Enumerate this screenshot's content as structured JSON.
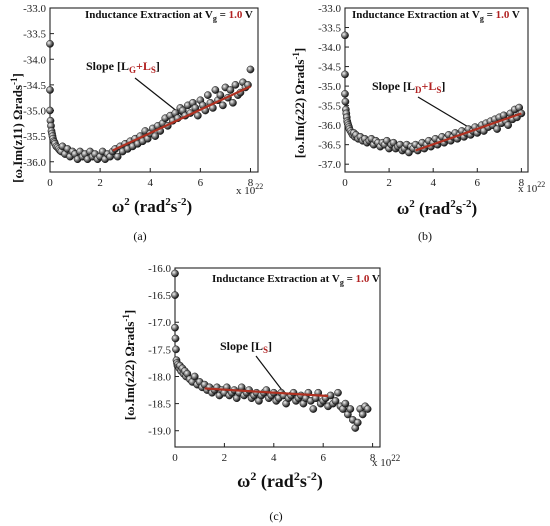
{
  "colors": {
    "fit": "#b03020",
    "accent": "#b22222",
    "marker_dark": "#1a1a1a",
    "marker_light": "#e8e8e8"
  },
  "chart_data": [
    {
      "type": "scatter",
      "caption": "(a)",
      "title_prefix": "Inductance Extraction at V",
      "title_sub": "g",
      "title_eq": " = ",
      "title_value": "1.0",
      "title_unit": " V",
      "ylabel": "[ω.Im(z11) Ωrads",
      "ylabel_sup": "-1",
      "ylabel_end": "]",
      "xlabel": "ω",
      "xlabel_sup": "2",
      "xlabel_mid": " (rad",
      "xlabel_sup2": "2",
      "xlabel_mid2": "s",
      "xlabel_sup3": "-2",
      "xlabel_end": ")",
      "x_multiplier": "x 10",
      "x_multiplier_exp": "22",
      "xlim": [
        0,
        8.3
      ],
      "ylim": [
        -36.2,
        -33.0
      ],
      "xticks": [
        "0",
        "2",
        "4",
        "6",
        "8"
      ],
      "yticks": [
        "-33.0",
        "-33.5",
        "-34.0",
        "-34.5",
        "-35.0",
        "-35.5",
        "-36.0"
      ],
      "annotation": {
        "prefix": "Slope [L",
        "sub1": "G",
        "plus": "+L",
        "sub2": "S",
        "suffix": "]"
      },
      "fit": {
        "x": [
          2.5,
          8.0
        ],
        "y": [
          -35.78,
          -34.53
        ]
      },
      "series_x": [
        0,
        0,
        0,
        0.02,
        0.04,
        0.06,
        0.08,
        0.1,
        0.12,
        0.15,
        0.18,
        0.2,
        0.25,
        0.3,
        0.35,
        0.4,
        0.45,
        0.5,
        0.6,
        0.7,
        0.8,
        0.9,
        1.0,
        1.1,
        1.2,
        1.3,
        1.4,
        1.5,
        1.6,
        1.7,
        1.8,
        1.9,
        2.0,
        2.1,
        2.2,
        2.3,
        2.4,
        2.5,
        2.6,
        2.7,
        2.8,
        2.9,
        3.0,
        3.1,
        3.2,
        3.3,
        3.4,
        3.5,
        3.6,
        3.7,
        3.8,
        3.9,
        4.0,
        4.1,
        4.2,
        4.3,
        4.4,
        4.5,
        4.6,
        4.7,
        4.8,
        4.9,
        5.0,
        5.1,
        5.2,
        5.3,
        5.4,
        5.5,
        5.6,
        5.7,
        5.8,
        5.9,
        6.0,
        6.1,
        6.2,
        6.3,
        6.4,
        6.5,
        6.6,
        6.7,
        6.8,
        6.9,
        7.0,
        7.1,
        7.2,
        7.3,
        7.4,
        7.5,
        7.6,
        7.7,
        7.8,
        7.9,
        8.0
      ],
      "series_y": [
        -33.7,
        -34.6,
        -35.0,
        -35.2,
        -35.3,
        -35.4,
        -35.45,
        -35.5,
        -35.55,
        -35.6,
        -35.62,
        -35.65,
        -35.7,
        -35.72,
        -35.75,
        -35.78,
        -35.8,
        -35.7,
        -35.85,
        -35.75,
        -35.9,
        -35.8,
        -35.85,
        -35.95,
        -35.8,
        -35.9,
        -35.85,
        -35.95,
        -35.8,
        -35.9,
        -35.85,
        -35.95,
        -35.9,
        -35.8,
        -35.95,
        -35.85,
        -35.9,
        -35.8,
        -35.75,
        -35.9,
        -35.7,
        -35.8,
        -35.65,
        -35.75,
        -35.6,
        -35.7,
        -35.55,
        -35.65,
        -35.5,
        -35.6,
        -35.4,
        -35.55,
        -35.45,
        -35.35,
        -35.5,
        -35.3,
        -35.4,
        -35.25,
        -35.15,
        -35.3,
        -35.1,
        -35.2,
        -35.05,
        -35.15,
        -34.95,
        -35.0,
        -35.1,
        -34.9,
        -35.05,
        -34.85,
        -34.95,
        -35.1,
        -34.8,
        -34.9,
        -35.0,
        -34.7,
        -34.85,
        -34.95,
        -34.6,
        -34.8,
        -34.7,
        -34.9,
        -34.55,
        -34.75,
        -34.6,
        -34.85,
        -34.5,
        -34.7,
        -34.65,
        -34.45,
        -34.55,
        -34.5,
        -34.2
      ]
    },
    {
      "type": "scatter",
      "caption": "(b)",
      "title_prefix": "Inductance Extraction at V",
      "title_sub": "g",
      "title_eq": " = ",
      "title_value": "1.0",
      "title_unit": " V",
      "ylabel": "[ω.Im(z22) Ωrads",
      "ylabel_sup": "-1",
      "ylabel_end": "]",
      "xlabel": "ω",
      "xlabel_sup": "2",
      "xlabel_mid": " (rad",
      "xlabel_sup2": "2",
      "xlabel_mid2": "s",
      "xlabel_sup3": "-2",
      "xlabel_end": ")",
      "x_multiplier": "x 10",
      "x_multiplier_exp": "22",
      "xlim": [
        0,
        8.3
      ],
      "ylim": [
        -37.2,
        -33.0
      ],
      "xticks": [
        "0",
        "2",
        "4",
        "6",
        "8"
      ],
      "yticks": [
        "-33.0",
        "-33.5",
        "-34.0",
        "-34.5",
        "-35.0",
        "-35.5",
        "-36.0",
        "-36.5",
        "-37.0"
      ],
      "annotation": {
        "prefix": "Slope [L",
        "sub1": "D",
        "plus": "+L",
        "sub2": "S",
        "suffix": "]"
      },
      "fit": {
        "x": [
          3.2,
          8.0
        ],
        "y": [
          -36.65,
          -35.7
        ]
      },
      "series_x": [
        0,
        0,
        0,
        0.02,
        0.04,
        0.06,
        0.08,
        0.1,
        0.12,
        0.15,
        0.18,
        0.2,
        0.25,
        0.3,
        0.35,
        0.4,
        0.45,
        0.5,
        0.6,
        0.7,
        0.8,
        0.9,
        1.0,
        1.1,
        1.2,
        1.3,
        1.4,
        1.5,
        1.6,
        1.7,
        1.8,
        1.9,
        2.0,
        2.1,
        2.2,
        2.3,
        2.4,
        2.5,
        2.6,
        2.7,
        2.8,
        2.9,
        3.0,
        3.1,
        3.2,
        3.3,
        3.4,
        3.5,
        3.6,
        3.7,
        3.8,
        3.9,
        4.0,
        4.1,
        4.2,
        4.3,
        4.4,
        4.5,
        4.6,
        4.7,
        4.8,
        4.9,
        5.0,
        5.1,
        5.2,
        5.3,
        5.4,
        5.5,
        5.6,
        5.7,
        5.8,
        5.9,
        6.0,
        6.1,
        6.2,
        6.3,
        6.4,
        6.5,
        6.6,
        6.7,
        6.8,
        6.9,
        7.0,
        7.1,
        7.2,
        7.3,
        7.4,
        7.5,
        7.6,
        7.7,
        7.8,
        7.9,
        8.0
      ],
      "series_y": [
        -33.7,
        -34.7,
        -35.2,
        -35.4,
        -35.6,
        -35.7,
        -35.8,
        -35.9,
        -35.95,
        -36.0,
        -36.05,
        -36.1,
        -36.15,
        -36.2,
        -36.25,
        -36.2,
        -36.3,
        -36.25,
        -36.35,
        -36.3,
        -36.4,
        -36.35,
        -36.45,
        -36.4,
        -36.35,
        -36.5,
        -36.4,
        -36.45,
        -36.55,
        -36.45,
        -36.5,
        -36.4,
        -36.6,
        -36.5,
        -36.45,
        -36.6,
        -36.55,
        -36.5,
        -36.65,
        -36.6,
        -36.5,
        -36.7,
        -36.55,
        -36.6,
        -36.5,
        -36.65,
        -36.55,
        -36.45,
        -36.6,
        -36.5,
        -36.4,
        -36.55,
        -36.45,
        -36.35,
        -36.5,
        -36.4,
        -36.3,
        -36.45,
        -36.35,
        -36.25,
        -36.4,
        -36.3,
        -36.2,
        -36.35,
        -36.25,
        -36.15,
        -36.3,
        -36.2,
        -36.1,
        -36.25,
        -36.15,
        -36.05,
        -36.2,
        -36.1,
        -36.0,
        -36.15,
        -35.95,
        -36.05,
        -35.9,
        -36.0,
        -35.85,
        -36.1,
        -35.8,
        -35.95,
        -35.75,
        -35.9,
        -36.0,
        -35.7,
        -35.85,
        -35.6,
        -35.8,
        -35.55,
        -35.7
      ]
    },
    {
      "type": "scatter",
      "caption": "(c)",
      "title_prefix": "Inductance Extraction at V",
      "title_sub": "g",
      "title_eq": " = ",
      "title_value": "1.0",
      "title_unit": " V",
      "ylabel": "[ω.Im(z22) Ωrads",
      "ylabel_sup": "-1",
      "ylabel_end": "]",
      "xlabel": "ω",
      "xlabel_sup": "2",
      "xlabel_mid": " (rad",
      "xlabel_sup2": "2",
      "xlabel_mid2": "s",
      "xlabel_sup3": "-2",
      "xlabel_end": ")",
      "x_multiplier": "x 10",
      "x_multiplier_exp": "22",
      "xlim": [
        0,
        8.3
      ],
      "ylim": [
        -19.3,
        -16.0
      ],
      "xticks": [
        "0",
        "2",
        "4",
        "6",
        "8"
      ],
      "yticks": [
        "-16.0",
        "-16.5",
        "-17.0",
        "-17.5",
        "-18.0",
        "-18.5",
        "-19.0"
      ],
      "annotation": {
        "prefix": "Slope [L",
        "sub1": "S",
        "plus": "",
        "sub2": "",
        "suffix": "]"
      },
      "fit": {
        "x": [
          1.2,
          6.2
        ],
        "y": [
          -18.22,
          -18.36
        ]
      },
      "series_x": [
        0,
        0,
        0,
        0.02,
        0.04,
        0.06,
        0.08,
        0.1,
        0.12,
        0.15,
        0.18,
        0.2,
        0.25,
        0.3,
        0.35,
        0.4,
        0.45,
        0.5,
        0.6,
        0.7,
        0.8,
        0.9,
        1.0,
        1.1,
        1.2,
        1.3,
        1.4,
        1.5,
        1.6,
        1.7,
        1.8,
        1.9,
        2.0,
        2.1,
        2.2,
        2.3,
        2.4,
        2.5,
        2.6,
        2.7,
        2.8,
        2.9,
        3.0,
        3.1,
        3.2,
        3.3,
        3.4,
        3.5,
        3.6,
        3.7,
        3.8,
        3.9,
        4.0,
        4.1,
        4.2,
        4.3,
        4.4,
        4.5,
        4.6,
        4.7,
        4.8,
        4.9,
        5.0,
        5.1,
        5.2,
        5.3,
        5.4,
        5.5,
        5.6,
        5.7,
        5.8,
        5.9,
        6.0,
        6.1,
        6.2,
        6.3,
        6.4,
        6.5,
        6.6,
        6.7,
        6.8,
        6.9,
        7.0,
        7.1,
        7.2,
        7.3,
        7.4,
        7.5,
        7.6,
        7.7,
        7.8
      ],
      "series_y": [
        -16.1,
        -16.5,
        -17.1,
        -17.3,
        -17.5,
        -17.7,
        -17.75,
        -17.8,
        -17.78,
        -17.82,
        -17.85,
        -17.8,
        -17.9,
        -17.85,
        -17.95,
        -17.9,
        -18.0,
        -17.95,
        -18.05,
        -18.1,
        -18.0,
        -18.15,
        -18.1,
        -18.2,
        -18.15,
        -18.25,
        -18.2,
        -18.3,
        -18.25,
        -18.2,
        -18.35,
        -18.25,
        -18.3,
        -18.2,
        -18.35,
        -18.3,
        -18.25,
        -18.4,
        -18.3,
        -18.2,
        -18.35,
        -18.3,
        -18.25,
        -18.4,
        -18.35,
        -18.3,
        -18.45,
        -18.35,
        -18.3,
        -18.25,
        -18.4,
        -18.35,
        -18.3,
        -18.45,
        -18.4,
        -18.3,
        -18.35,
        -18.5,
        -18.4,
        -18.35,
        -18.3,
        -18.45,
        -18.4,
        -18.35,
        -18.5,
        -18.4,
        -18.3,
        -18.45,
        -18.6,
        -18.4,
        -18.3,
        -18.5,
        -18.45,
        -18.4,
        -18.55,
        -18.35,
        -18.5,
        -18.45,
        -18.3,
        -18.55,
        -18.6,
        -18.5,
        -18.7,
        -18.6,
        -18.8,
        -18.95,
        -18.85,
        -18.6,
        -18.7,
        -18.55,
        -18.6
      ]
    }
  ]
}
